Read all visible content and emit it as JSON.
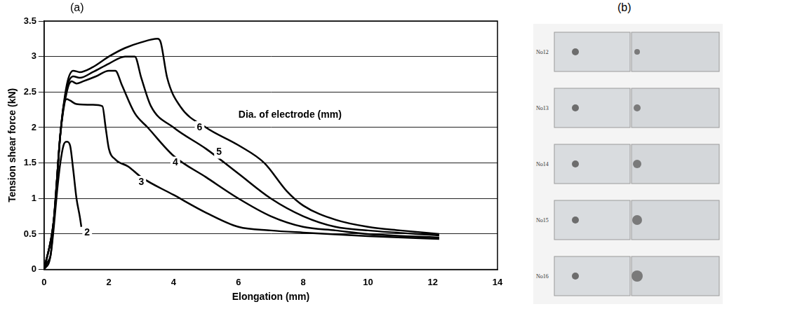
{
  "chart_data": {
    "type": "line",
    "x_label": "Elongation (mm)",
    "y_label": "Tension shear force (kN)",
    "xlim": [
      0,
      14
    ],
    "xticks": [
      0,
      2,
      4,
      6,
      8,
      10,
      12,
      14
    ],
    "ylim": [
      0,
      3.5
    ],
    "yticks": [
      0,
      0.5,
      1,
      1.5,
      2,
      2.5,
      3,
      3.5
    ],
    "grid": true,
    "annotations": [
      {
        "text": "Dia. of electrode (mm)",
        "x": 6.0,
        "y": 2.18
      }
    ],
    "series": [
      {
        "name": "2",
        "color": "#000000",
        "x": [
          0,
          0.1,
          0.2,
          0.3,
          0.4,
          0.5,
          0.6,
          0.7,
          0.8,
          0.9,
          1.0,
          1.1,
          1.15
        ],
        "values": [
          0,
          0.1,
          0.2,
          0.6,
          1.1,
          1.5,
          1.75,
          1.8,
          1.75,
          1.4,
          1.0,
          0.75,
          0.6
        ]
      },
      {
        "name": "3",
        "color": "#000000",
        "x": [
          0,
          0.2,
          0.3,
          0.4,
          0.5,
          0.6,
          0.7,
          0.8,
          1.0,
          1.5,
          1.8,
          1.9,
          2.0,
          2.2,
          2.6,
          3,
          4,
          5,
          6,
          7,
          8,
          10,
          12.2
        ],
        "values": [
          0,
          0.2,
          0.7,
          1.3,
          1.9,
          2.3,
          2.4,
          2.38,
          2.33,
          2.32,
          2.3,
          2.0,
          1.7,
          1.55,
          1.45,
          1.3,
          1.05,
          0.8,
          0.6,
          0.55,
          0.52,
          0.47,
          0.43
        ]
      },
      {
        "name": "4",
        "color": "#000000",
        "x": [
          0,
          0.3,
          0.5,
          0.7,
          0.85,
          1,
          1.2,
          1.6,
          2,
          2.2,
          2.4,
          2.8,
          3.2,
          4,
          5,
          6,
          7,
          8,
          9,
          10,
          12.2
        ],
        "values": [
          0,
          0.7,
          1.9,
          2.5,
          2.65,
          2.62,
          2.65,
          2.72,
          2.8,
          2.8,
          2.6,
          2.2,
          2.0,
          1.6,
          1.3,
          1.0,
          0.75,
          0.6,
          0.55,
          0.5,
          0.45
        ]
      },
      {
        "name": "5",
        "color": "#000000",
        "x": [
          0,
          0.3,
          0.5,
          0.7,
          0.9,
          1.1,
          1.5,
          2,
          2.5,
          2.8,
          3.0,
          3.3,
          4,
          5,
          6,
          7,
          8,
          9,
          10,
          12.2
        ],
        "values": [
          0,
          0.7,
          1.9,
          2.55,
          2.72,
          2.7,
          2.78,
          2.9,
          3.0,
          3.0,
          2.7,
          2.3,
          2.0,
          1.7,
          1.35,
          1.0,
          0.75,
          0.6,
          0.55,
          0.48
        ]
      },
      {
        "name": "6",
        "color": "#000000",
        "x": [
          0,
          0.3,
          0.5,
          0.7,
          0.9,
          1.1,
          1.5,
          2,
          2.5,
          3,
          3.5,
          3.6,
          3.8,
          4.2,
          5,
          6,
          6.8,
          7.5,
          8,
          9,
          10,
          11,
          12.2
        ],
        "values": [
          0,
          0.7,
          1.9,
          2.6,
          2.8,
          2.78,
          2.85,
          3.0,
          3.12,
          3.2,
          3.25,
          3.2,
          2.7,
          2.3,
          2.0,
          1.75,
          1.5,
          1.1,
          0.9,
          0.7,
          0.6,
          0.55,
          0.5
        ]
      }
    ]
  },
  "panel_labels": [
    "(a)",
    "(b)"
  ],
  "photo": {
    "specimens": [
      "No12",
      "No13",
      "No14",
      "No15",
      "No16"
    ]
  }
}
